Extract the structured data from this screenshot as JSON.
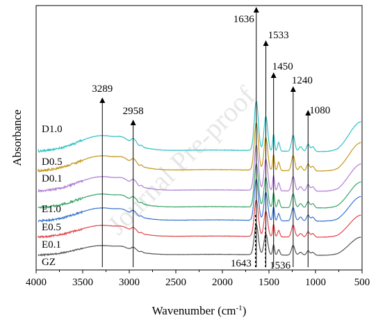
{
  "chart_data": {
    "type": "line",
    "xlabel": "Wavenumber (cm",
    "xlabel_sup": "-1",
    "xlabel_end": ")",
    "ylabel": "Absorbance",
    "xlim": [
      4000,
      500
    ],
    "x_reversed": true,
    "x_ticks": [
      "4000",
      "3500",
      "3000",
      "2500",
      "2000",
      "1500",
      "1000",
      "500"
    ],
    "watermark": "Journal Pre-proof",
    "series": [
      {
        "name": "GZ",
        "color": "#555555"
      },
      {
        "name": "E0.1",
        "color": "#e0474c"
      },
      {
        "name": "E0.5",
        "color": "#3a76d0"
      },
      {
        "name": "E1.0",
        "color": "#3aa66a"
      },
      {
        "name": "D0.1",
        "color": "#b07fd6"
      },
      {
        "name": "D0.5",
        "color": "#c49a1f"
      },
      {
        "name": "D1.0",
        "color": "#35c2c6"
      }
    ],
    "peak_annotations": [
      {
        "label": "3289",
        "x": 3289,
        "style": "solid"
      },
      {
        "label": "2958",
        "x": 2958,
        "style": "solid"
      },
      {
        "label": "1636",
        "x": 1636,
        "style": "solid"
      },
      {
        "label": "1533",
        "x": 1533,
        "style": "solid"
      },
      {
        "label": "1450",
        "x": 1450,
        "style": "solid"
      },
      {
        "label": "1240",
        "x": 1240,
        "style": "solid"
      },
      {
        "label": "1080",
        "x": 1080,
        "style": "solid"
      },
      {
        "label": "1643",
        "x": 1643,
        "style": "dashed"
      },
      {
        "label": "1536",
        "x": 1536,
        "style": "dashed"
      }
    ]
  }
}
